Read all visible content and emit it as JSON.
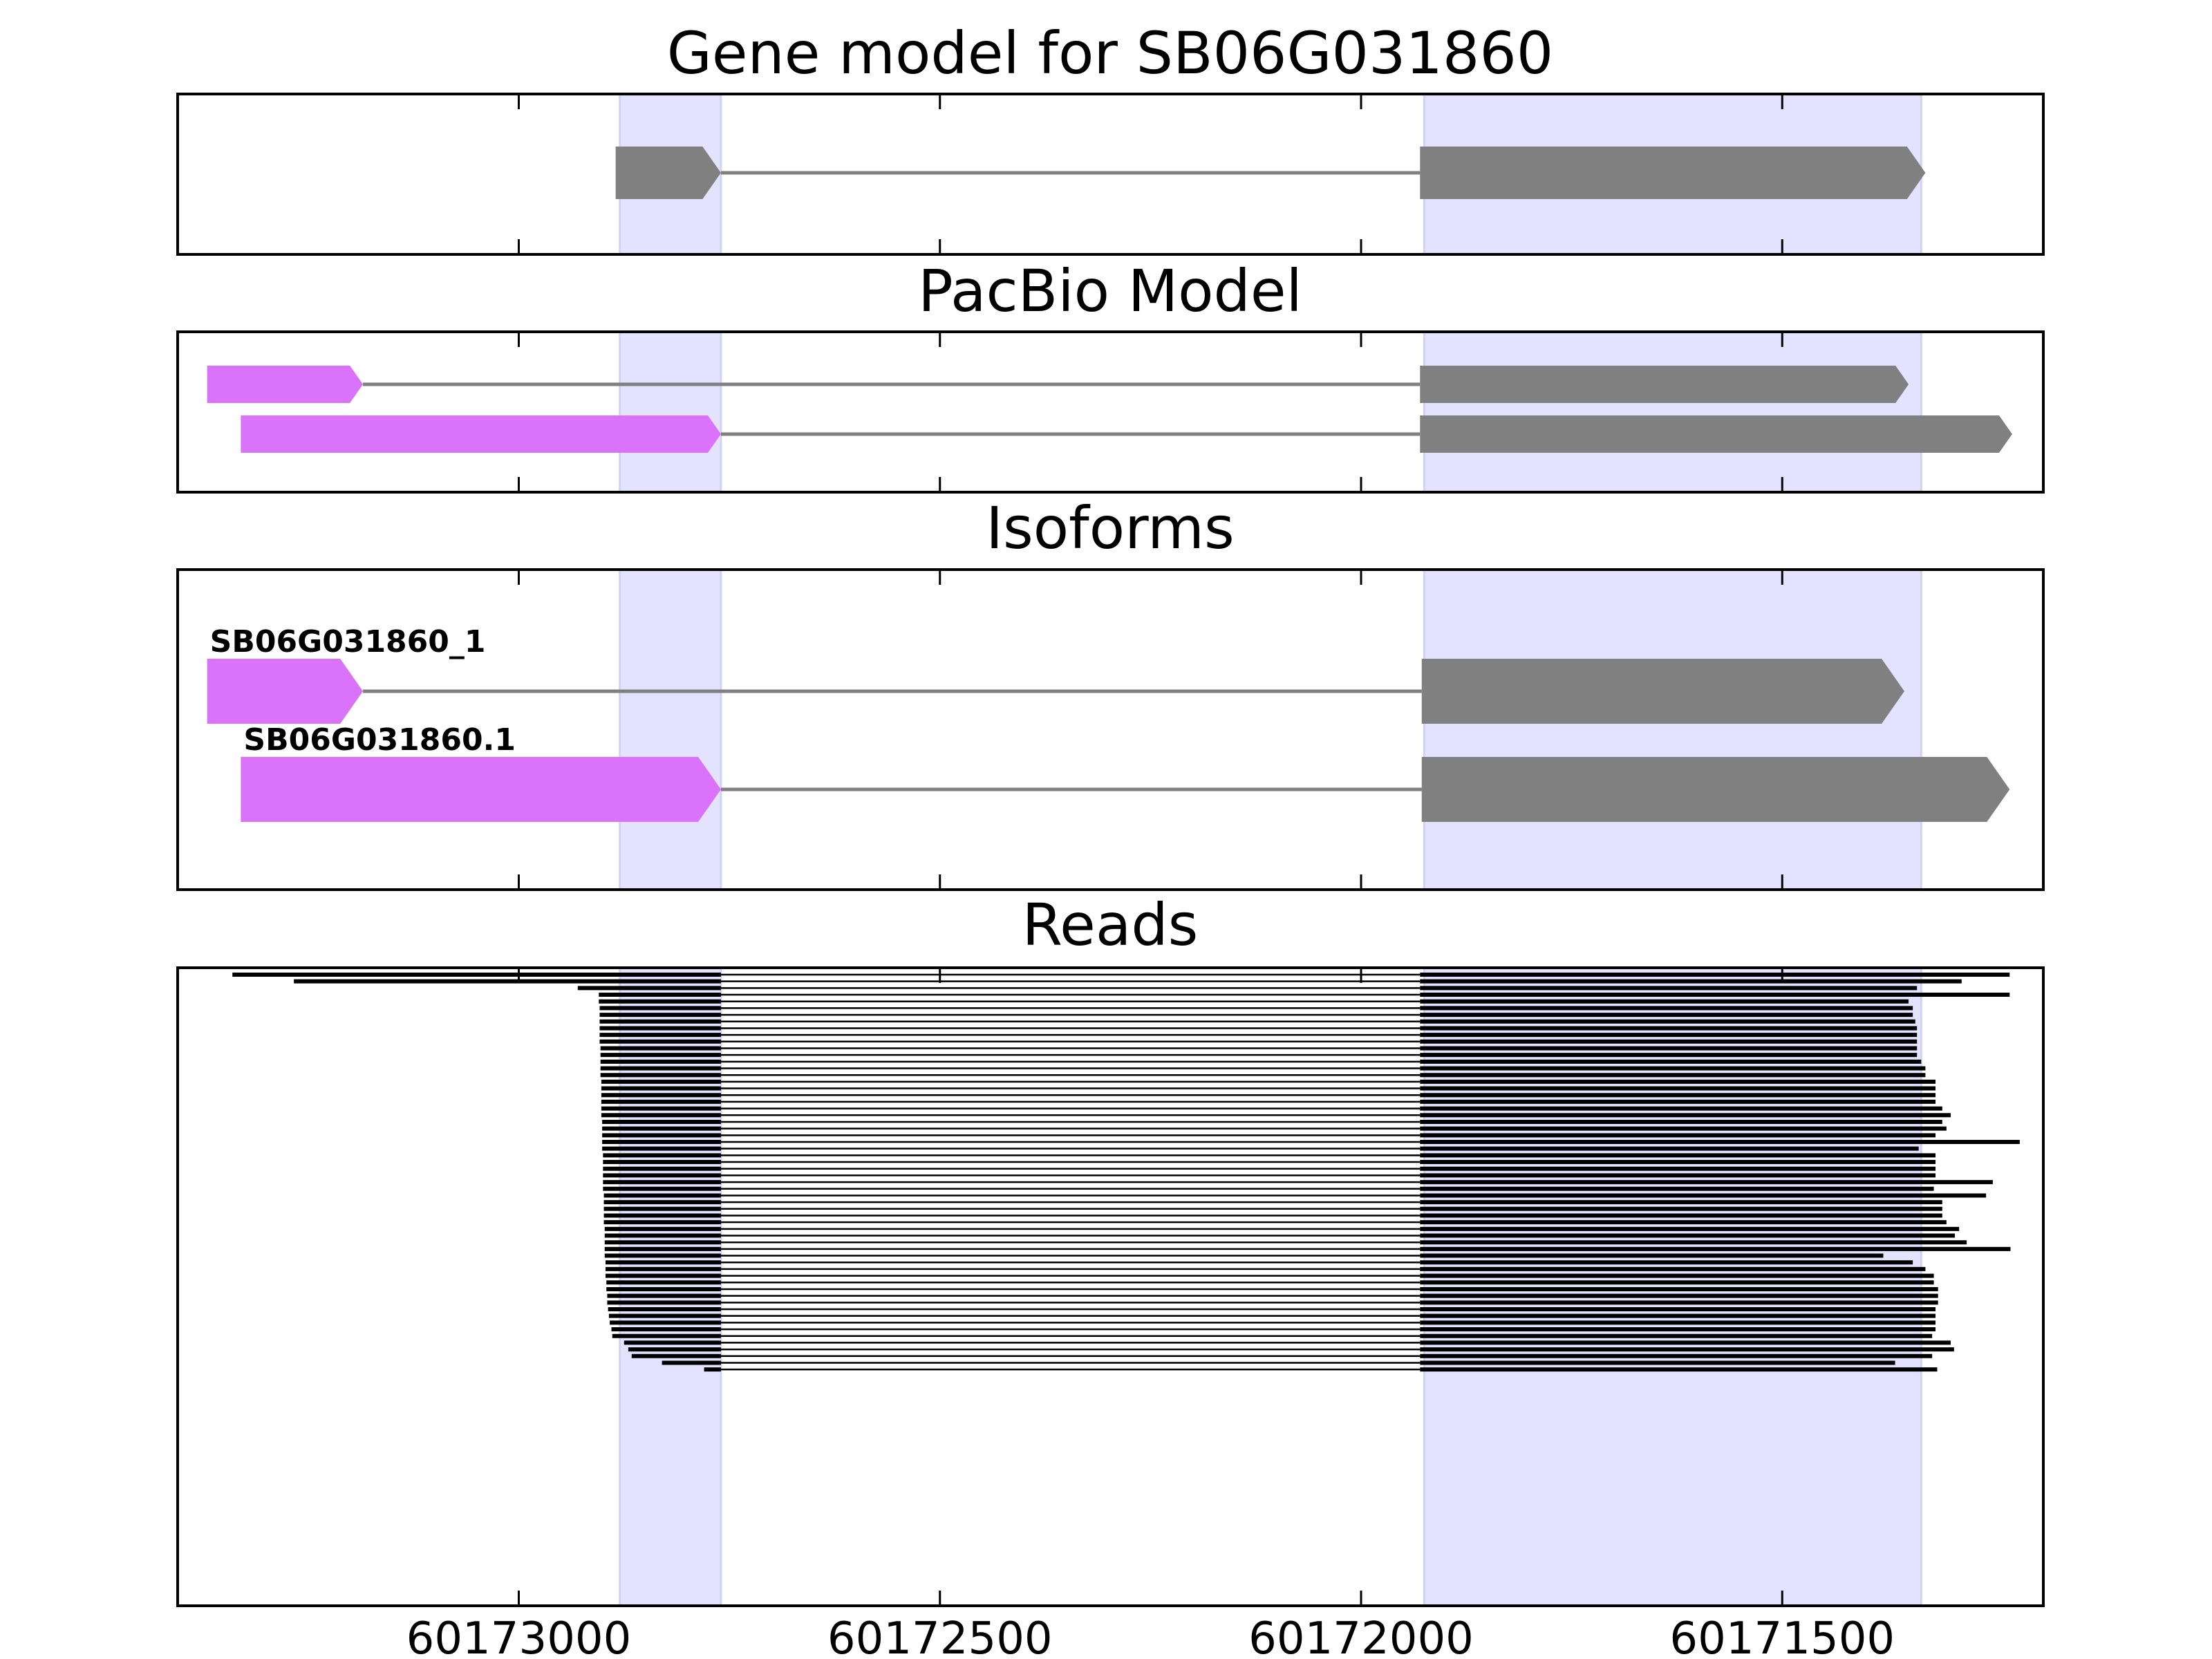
{
  "chart_data": {
    "type": "gene_structure",
    "x_axis": {
      "reversed": true,
      "range": [
        60173405,
        60171190
      ],
      "ticks": [
        60173000,
        60172500,
        60172000,
        60171500
      ],
      "tick_labels": [
        "60173000",
        "60172500",
        "60172000",
        "60171500"
      ]
    },
    "highlight_regions": [
      [
        60172880,
        60172760
      ],
      [
        60171925,
        60171335
      ]
    ],
    "colors": {
      "exon": "#808080",
      "exon_alt": "#da73fa",
      "intron": "#808080",
      "highlight": "#e3e3ff",
      "read": "#000000"
    },
    "panels": [
      {
        "key": "gene_model",
        "title": "Gene model for SB06G031860",
        "models": [
          {
            "exons": [
              [
                60172885,
                60172760,
                "exon"
              ],
              [
                60171930,
                60171330,
                "exon"
              ]
            ]
          }
        ]
      },
      {
        "key": "pacbio",
        "title": "PacBio Model",
        "models": [
          {
            "exons": [
              [
                60173370,
                60173185,
                "exon_alt"
              ],
              [
                60171930,
                60171350,
                "exon"
              ]
            ]
          },
          {
            "exons": [
              [
                60173330,
                60172760,
                "exon_alt"
              ],
              [
                60171930,
                60171227,
                "exon"
              ]
            ]
          }
        ]
      },
      {
        "key": "isoforms",
        "title": "Isoforms",
        "models": [
          {
            "label": "SB06G031860_1",
            "exons": [
              [
                60173370,
                60173185,
                "exon_alt"
              ],
              [
                60171928,
                60171355,
                "exon"
              ]
            ]
          },
          {
            "label": "SB06G031860.1",
            "exons": [
              [
                60173330,
                60172760,
                "exon_alt"
              ],
              [
                60171928,
                60171230,
                "exon"
              ]
            ]
          }
        ]
      },
      {
        "key": "reads",
        "title": "Reads",
        "read_count": 60,
        "intron": [
          60172760,
          60171930
        ],
        "read_starts": [
          60173340,
          60173267,
          60172930,
          60172905,
          60172905,
          60172904,
          60172904,
          60172904,
          60172904,
          60172904,
          60172904,
          60172903,
          60172903,
          60172903,
          60172903,
          60172903,
          60172902,
          60172902,
          60172902,
          60172902,
          60172902,
          60172902,
          60172901,
          60172901,
          60172901,
          60172901,
          60172901,
          60172900,
          60172900,
          60172900,
          60172900,
          60172900,
          60172900,
          60172899,
          60172899,
          60172899,
          60172899,
          60172899,
          60172898,
          60172898,
          60172898,
          60172898,
          60172898,
          60172897,
          60172897,
          60172897,
          60172896,
          60172896,
          60172895,
          60172895,
          60172894,
          60172893,
          60172892,
          60172890,
          60172889,
          60172875,
          60172870,
          60172866,
          60172830,
          60172780
        ],
        "read_ends": [
          60171230,
          60171287,
          60171340,
          60171230,
          60171350,
          60171345,
          60171345,
          60171342,
          60171340,
          60171340,
          60171340,
          60171340,
          60171340,
          60171335,
          60171330,
          60171330,
          60171318,
          60171318,
          60171318,
          60171318,
          60171310,
          60171300,
          60171310,
          60171305,
          60171318,
          60171218,
          60171338,
          60171318,
          60171318,
          60171318,
          60171318,
          60171250,
          60171320,
          60171258,
          60171310,
          60171310,
          60171310,
          60171305,
          60171290,
          60171295,
          60171281,
          60171229,
          60171380,
          60171345,
          60171330,
          60171320,
          60171320,
          60171315,
          60171315,
          60171315,
          60171318,
          60171318,
          60171318,
          60171318,
          60171322,
          60171300,
          60171296,
          60171322,
          60171366,
          60171316
        ]
      }
    ]
  }
}
